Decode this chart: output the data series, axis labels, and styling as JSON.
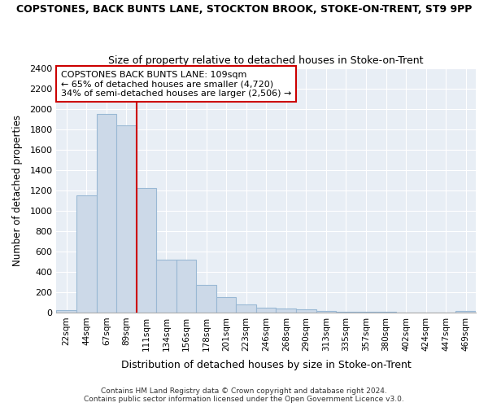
{
  "title": "COPSTONES, BACK BUNTS LANE, STOCKTON BROOK, STOKE-ON-TRENT, ST9 9PP",
  "subtitle": "Size of property relative to detached houses in Stoke-on-Trent",
  "xlabel": "Distribution of detached houses by size in Stoke-on-Trent",
  "ylabel": "Number of detached properties",
  "categories": [
    "22sqm",
    "44sqm",
    "67sqm",
    "89sqm",
    "111sqm",
    "134sqm",
    "156sqm",
    "178sqm",
    "201sqm",
    "223sqm",
    "246sqm",
    "268sqm",
    "290sqm",
    "313sqm",
    "335sqm",
    "357sqm",
    "380sqm",
    "402sqm",
    "424sqm",
    "447sqm",
    "469sqm"
  ],
  "values": [
    25,
    1150,
    1950,
    1840,
    1220,
    520,
    520,
    270,
    150,
    80,
    50,
    40,
    35,
    12,
    8,
    8,
    5,
    3,
    3,
    3,
    12
  ],
  "bar_color": "#ccd9e8",
  "bar_edge_color": "#99b8d4",
  "bar_edge_width": 0.8,
  "vline_x": 3.5,
  "vline_color": "#cc0000",
  "ylim": [
    0,
    2400
  ],
  "yticks": [
    0,
    200,
    400,
    600,
    800,
    1000,
    1200,
    1400,
    1600,
    1800,
    2000,
    2200,
    2400
  ],
  "annotation_box_text": "COPSTONES BACK BUNTS LANE: 109sqm\n← 65% of detached houses are smaller (4,720)\n34% of semi-detached houses are larger (2,506) →",
  "annotation_box_color": "#cc0000",
  "axes_facecolor": "#e8eef5",
  "fig_facecolor": "#ffffff",
  "grid_color": "#ffffff",
  "footer_line1": "Contains HM Land Registry data © Crown copyright and database right 2024.",
  "footer_line2": "Contains public sector information licensed under the Open Government Licence v3.0."
}
